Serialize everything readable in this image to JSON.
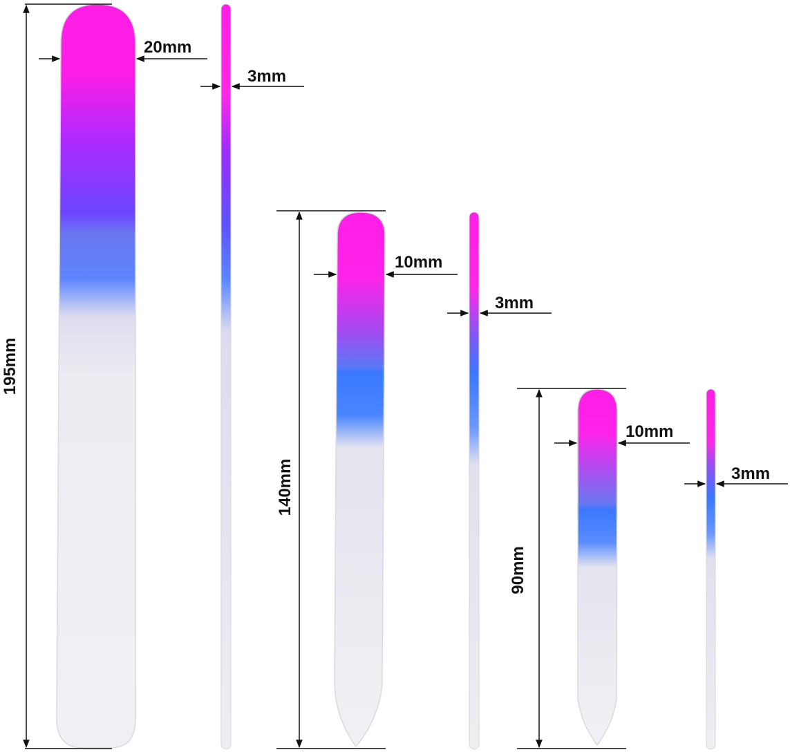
{
  "colors": {
    "pink": "#ff1ee6",
    "purple": "#9a2cff",
    "violet": "#6a3cff",
    "blue": "#3f7bff",
    "frost": "#eeeef3",
    "line": "#111111"
  },
  "files": [
    {
      "id": "large",
      "length_label": "195mm",
      "width_label": "20mm",
      "edge_label": "3mm"
    },
    {
      "id": "medium",
      "length_label": "140mm",
      "width_label": "10mm",
      "edge_label": "3mm"
    },
    {
      "id": "small",
      "length_label": "90mm",
      "width_label": "10mm",
      "edge_label": "3mm"
    }
  ]
}
